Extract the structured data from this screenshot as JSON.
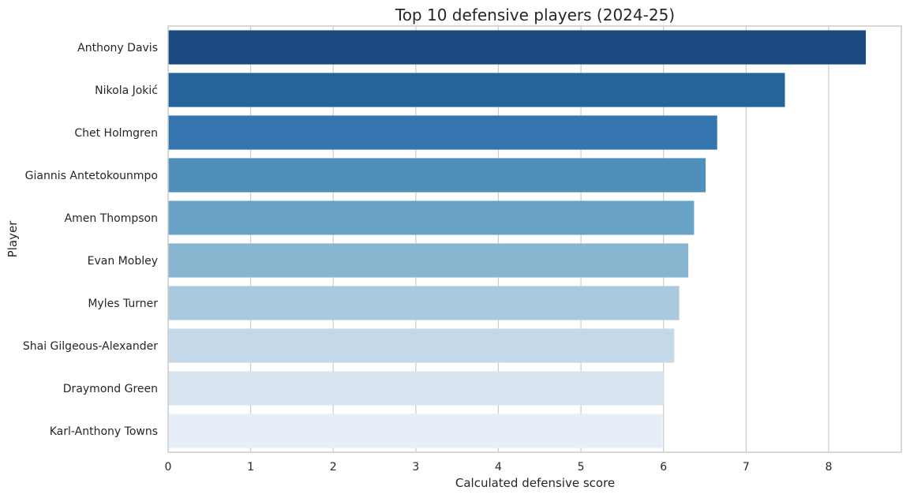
{
  "chart_data": {
    "type": "bar",
    "orientation": "horizontal",
    "title": "Top 10 defensive players (2024-25)",
    "xlabel": "Calculated defensive score",
    "ylabel": "Player",
    "xlim": [
      0,
      8.88
    ],
    "xticks": [
      0,
      1,
      2,
      3,
      4,
      5,
      6,
      7,
      8
    ],
    "grid": true,
    "categories": [
      "Anthony Davis",
      "Nikola Jokić",
      "Chet Holmgren",
      "Giannis Antetokounmpo",
      "Amen Thompson",
      "Evan Mobley",
      "Myles Turner",
      "Shai Gilgeous-Alexander",
      "Draymond Green",
      "Karl-Anthony Towns"
    ],
    "values": [
      8.45,
      7.47,
      6.65,
      6.51,
      6.37,
      6.3,
      6.19,
      6.13,
      6.0,
      5.99
    ],
    "colors": [
      "#1a4a80",
      "#24639c",
      "#3676b0",
      "#4f8fba",
      "#69a3c6",
      "#88b6d1",
      "#a9c9dc",
      "#c5d8e8",
      "#d8e5f1",
      "#e6eef7"
    ]
  }
}
